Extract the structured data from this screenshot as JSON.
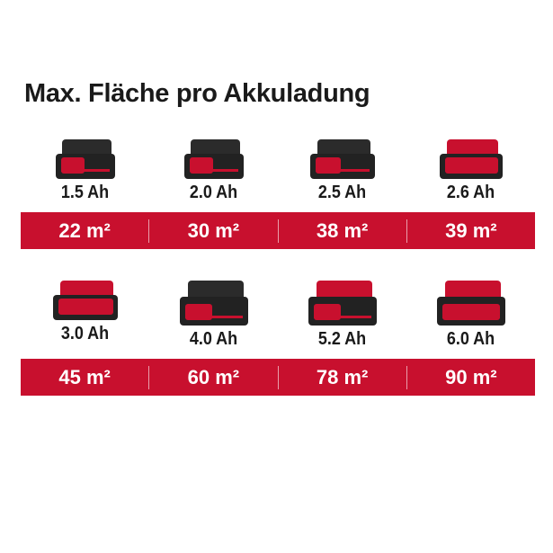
{
  "title": "Max. Fläche pro Akkuladung",
  "colors": {
    "accent": "#c8102e",
    "battery": "#222222"
  },
  "rows": [
    {
      "items": [
        {
          "capacity": "1.5 Ah",
          "area": "22 m²"
        },
        {
          "capacity": "2.0 Ah",
          "area": "30 m²"
        },
        {
          "capacity": "2.5 Ah",
          "area": "38 m²"
        },
        {
          "capacity": "2.6 Ah",
          "area": "39 m²"
        }
      ]
    },
    {
      "items": [
        {
          "capacity": "3.0 Ah",
          "area": "45 m²"
        },
        {
          "capacity": "4.0 Ah",
          "area": "60 m²"
        },
        {
          "capacity": "5.2 Ah",
          "area": "78 m²"
        },
        {
          "capacity": "6.0 Ah",
          "area": "90 m²"
        }
      ]
    }
  ]
}
